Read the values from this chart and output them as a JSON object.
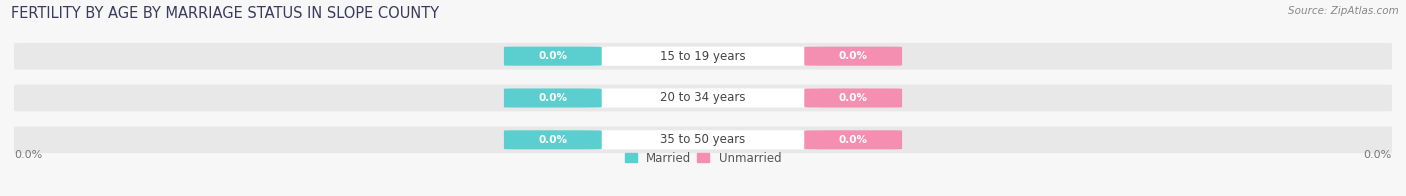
{
  "title": "FERTILITY BY AGE BY MARRIAGE STATUS IN SLOPE COUNTY",
  "source": "Source: ZipAtlas.com",
  "categories": [
    "15 to 19 years",
    "20 to 34 years",
    "35 to 50 years"
  ],
  "married_values": [
    0.0,
    0.0,
    0.0
  ],
  "unmarried_values": [
    0.0,
    0.0,
    0.0
  ],
  "married_color": "#5bcfcf",
  "unmarried_color": "#f48fb1",
  "pill_bg_color": "#e8e8e8",
  "pill_shadow_color": "#d0d0d0",
  "center_label_bg": "#ffffff",
  "fig_bg_color": "#f7f7f7",
  "x_left_label": "0.0%",
  "x_right_label": "0.0%",
  "title_fontsize": 10.5,
  "source_fontsize": 7.5,
  "badge_fontsize": 7.5,
  "category_fontsize": 8.5,
  "legend_fontsize": 8.5,
  "title_color": "#3a3a5c",
  "source_color": "#888888",
  "axis_label_color": "#777777",
  "category_color": "#444444"
}
